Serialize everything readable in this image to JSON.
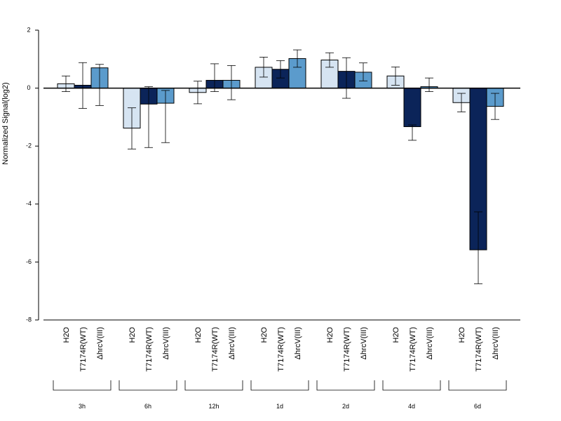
{
  "chart_data": {
    "type": "bar",
    "title": "",
    "ylabel": "Normalized Signal(log2)",
    "xlabel": "",
    "ylim": [
      -8,
      2
    ],
    "yticks": [
      2,
      0,
      -2,
      -4,
      -6,
      -8
    ],
    "groups": [
      "3h",
      "6h",
      "12h",
      "1d",
      "2d",
      "4d",
      "6d"
    ],
    "conditions": [
      "H2O",
      "T7174R(WT)",
      "ΔhrcV(III)"
    ],
    "colors": [
      "#d6e4f2",
      "#0b2459",
      "#5b9bcc"
    ],
    "grid": false,
    "legend": "none",
    "series": [
      {
        "values": [
          0.15,
          -1.38,
          -0.15,
          0.72,
          0.97,
          0.42,
          -0.5
        ],
        "error_low": [
          -0.12,
          -2.1,
          -0.54,
          0.38,
          0.72,
          0.1,
          -0.82
        ],
        "error_high": [
          0.42,
          -0.68,
          0.24,
          1.07,
          1.22,
          0.73,
          -0.18
        ]
      },
      {
        "values": [
          0.1,
          -0.55,
          0.27,
          0.65,
          0.58,
          -1.33,
          -5.58
        ],
        "error_low": [
          -0.7,
          -2.05,
          -0.12,
          0.35,
          -0.35,
          -1.8,
          -6.75
        ],
        "error_high": [
          0.88,
          0.05,
          0.84,
          0.95,
          1.05,
          -1.27,
          -4.27
        ]
      },
      {
        "values": [
          0.7,
          -0.52,
          0.27,
          1.02,
          0.55,
          0.05,
          -0.63
        ],
        "error_low": [
          -0.6,
          -1.88,
          -0.4,
          0.72,
          0.25,
          -0.12,
          -1.08
        ],
        "error_high": [
          0.82,
          -0.08,
          0.78,
          1.32,
          0.87,
          0.35,
          -0.18
        ]
      }
    ]
  }
}
